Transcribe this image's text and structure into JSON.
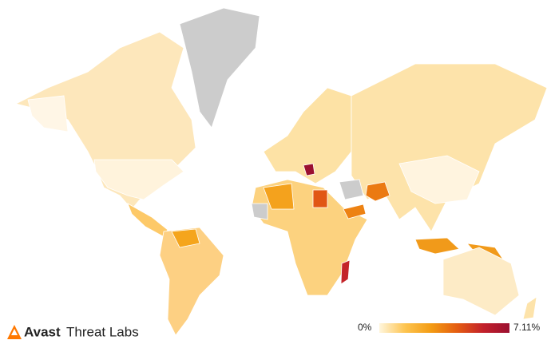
{
  "brand": {
    "name": "Avast",
    "product": "Threat Labs"
  },
  "legend": {
    "min": {
      "value": 0,
      "label": "0%"
    },
    "max": {
      "value": 7.11,
      "label": "7.11%"
    },
    "colors": [
      "#fff6dd",
      "#fdc44f",
      "#f39b13",
      "#e45c12",
      "#c2202b",
      "#9b1030"
    ]
  },
  "highlighted": [
    {
      "name": "Bosnia and Herzegovina",
      "value": 7.11
    },
    {
      "name": "Madagascar",
      "value": 5.6
    },
    {
      "name": "Egypt",
      "value": 4.4
    },
    {
      "name": "Afghanistan",
      "value": 3.6
    },
    {
      "name": "Yemen",
      "value": 3.4
    }
  ]
}
